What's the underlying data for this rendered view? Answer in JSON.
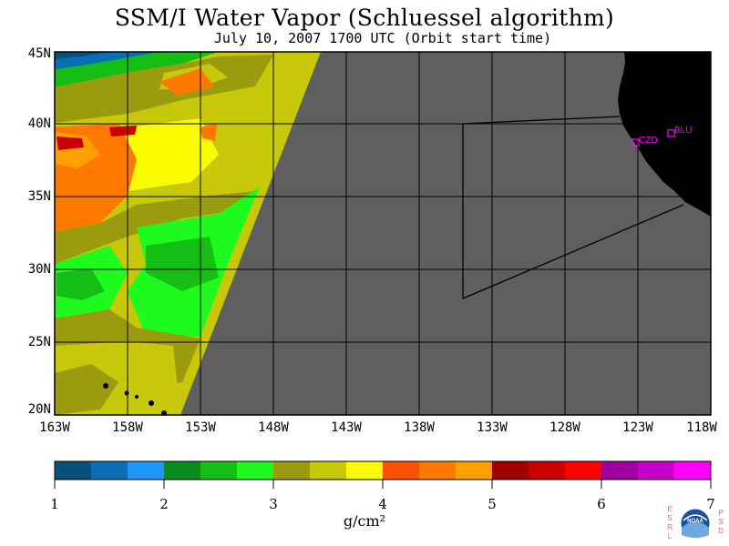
{
  "title": "SSM/I Water Vapor (Schluessel algorithm)",
  "subtitle": "July 10, 2007  1700 UTC  (Orbit start time)",
  "lat_labels": [
    "45N",
    "40N",
    "35N",
    "30N",
    "25N",
    "20N"
  ],
  "lon_labels": [
    "163W",
    "158W",
    "153W",
    "148W",
    "143W",
    "138W",
    "133W",
    "128W",
    "123W",
    "118W"
  ],
  "stations": [
    {
      "name": "CZD",
      "marker": "square-icon"
    },
    {
      "name": "BLU",
      "marker": "square-icon"
    }
  ],
  "colorbar": {
    "ticks": [
      "1",
      "2",
      "3",
      "4",
      "5",
      "6",
      "7"
    ],
    "units": "g/cm²",
    "colors": [
      "#0a5078",
      "#0a6eb4",
      "#1e96ff",
      "#0a8c1e",
      "#14be14",
      "#1efa1e",
      "#9b9b0f",
      "#c8c80a",
      "#fafa00",
      "#ff5000",
      "#ff7800",
      "#ffa000",
      "#a00000",
      "#c80000",
      "#ff0000",
      "#a000a0",
      "#c800c8",
      "#ff00ff"
    ]
  },
  "logo": {
    "left_letters": "ESRL",
    "right_letters": "PSD",
    "badge": "NOAA"
  },
  "map_colors": {
    "no_data": "#5f5f5f",
    "land": "#000000",
    "station": "#ff00ff"
  }
}
